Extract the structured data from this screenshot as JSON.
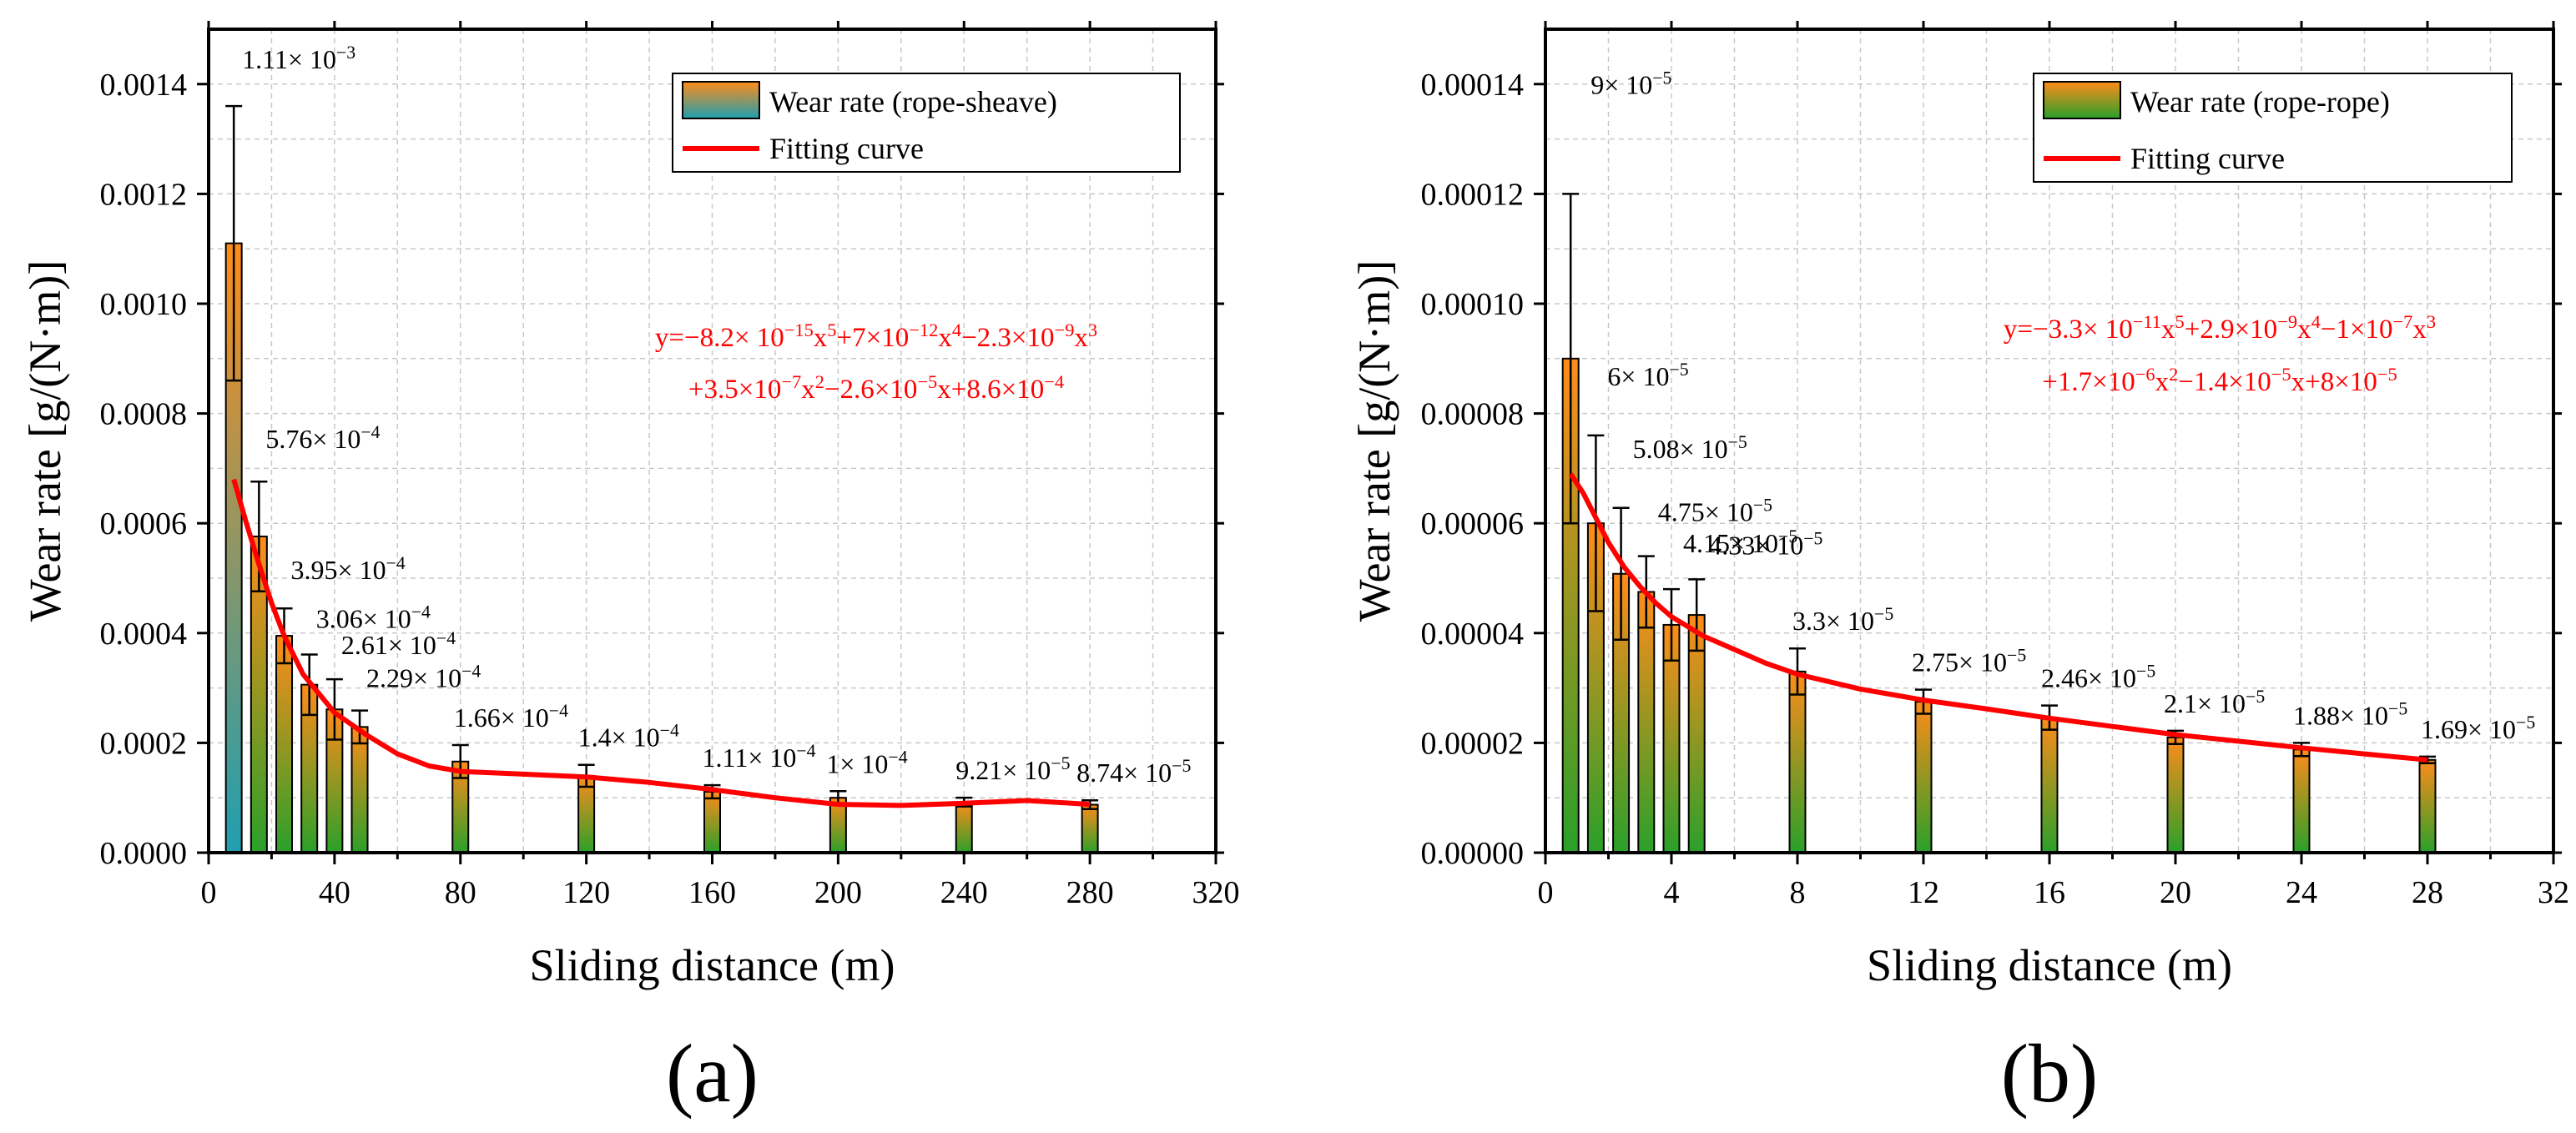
{
  "chart_data": [
    {
      "type": "bar",
      "panel_label": "(a)",
      "xlabel": "Sliding distance (m)",
      "ylabel": "Wear rate [g/(N·m)]",
      "xlim": [
        0,
        320
      ],
      "ylim": [
        0,
        0.0015
      ],
      "xticks": [
        0,
        40,
        80,
        120,
        160,
        200,
        240,
        280,
        320
      ],
      "xtick_labels": [
        "0",
        "40",
        "80",
        "120",
        "160",
        "200",
        "240",
        "280",
        "320"
      ],
      "yticks": [
        0,
        0.0002,
        0.0004,
        0.0006,
        0.0008,
        0.001,
        0.0012,
        0.0014
      ],
      "ytick_labels": [
        "0.0000",
        "0.0002",
        "0.0004",
        "0.0006",
        "0.0008",
        "0.0010",
        "0.0012",
        "0.0014"
      ],
      "grid": true,
      "legend_position": "top-right",
      "legend": {
        "bar": "Wear rate (rope-sheave)",
        "line": "Fitting curve"
      },
      "bar_colors": {
        "top": "#ff8c1a",
        "bottom_first": "#1f9fb0",
        "bottom_rest": "#2aa02a"
      },
      "fit_color": "#ff0000",
      "x": [
        8,
        16,
        24,
        32,
        40,
        48,
        80,
        120,
        160,
        200,
        240,
        280
      ],
      "values": [
        0.00111,
        0.000576,
        0.000395,
        0.000306,
        0.000261,
        0.000229,
        0.000166,
        0.00014,
        0.000111,
        0.0001,
        9.21e-05,
        8.74e-05
      ],
      "errors": [
        0.00025,
        0.0001,
        5e-05,
        5.5e-05,
        5.5e-05,
        3e-05,
        3e-05,
        2e-05,
        1.2e-05,
        1.2e-05,
        8e-06,
        8e-06
      ],
      "value_labels": [
        {
          "mant": "1.11",
          "exp": "−3"
        },
        {
          "mant": "5.76",
          "exp": "−4"
        },
        {
          "mant": "3.95",
          "exp": "−4"
        },
        {
          "mant": "3.06",
          "exp": "−4"
        },
        {
          "mant": "2.61",
          "exp": "−4"
        },
        {
          "mant": "2.29",
          "exp": "−4"
        },
        {
          "mant": "1.66",
          "exp": "−4"
        },
        {
          "mant": "1.4",
          "exp": "−4"
        },
        {
          "mant": "1.11",
          "exp": "−4"
        },
        {
          "mant": "1",
          "exp": "−4"
        },
        {
          "mant": "9.21",
          "exp": "−5"
        },
        {
          "mant": "8.74",
          "exp": "−5"
        }
      ],
      "fit_curve": {
        "x": [
          8,
          12,
          16,
          20,
          24,
          30,
          40,
          50,
          60,
          70,
          80,
          100,
          120,
          140,
          160,
          180,
          200,
          220,
          240,
          260,
          280
        ],
        "y": [
          0.00068,
          0.0006,
          0.000525,
          0.000455,
          0.000395,
          0.000325,
          0.000255,
          0.000215,
          0.00018,
          0.000158,
          0.000148,
          0.000143,
          0.000138,
          0.000128,
          0.000115,
          0.0001,
          8.8e-05,
          8.6e-05,
          9e-05,
          9.5e-05,
          8.8e-05
        ]
      },
      "equation_line1": [
        {
          "t": "y=−8.2× 10"
        },
        {
          "sup": "−15"
        },
        {
          "t": "x"
        },
        {
          "sup": "5"
        },
        {
          "t": "+7×10"
        },
        {
          "sup": "−12"
        },
        {
          "t": "x"
        },
        {
          "sup": "4"
        },
        {
          "t": "−2.3×10"
        },
        {
          "sup": "−9"
        },
        {
          "t": "x"
        },
        {
          "sup": "3"
        }
      ],
      "equation_line2": [
        {
          "t": "+3.5×10"
        },
        {
          "sup": "−7"
        },
        {
          "t": "x"
        },
        {
          "sup": "2"
        },
        {
          "t": "−2.6×10"
        },
        {
          "sup": "−5"
        },
        {
          "t": "x+8.6×10"
        },
        {
          "sup": "−4"
        }
      ]
    },
    {
      "type": "bar",
      "panel_label": "(b)",
      "xlabel": "Sliding distance (m)",
      "ylabel": "Wear rate [g/(N·m)]",
      "xlim": [
        0,
        32
      ],
      "ylim": [
        0,
        0.00015
      ],
      "xticks": [
        0,
        4,
        8,
        12,
        16,
        20,
        24,
        28,
        32
      ],
      "xtick_labels": [
        "0",
        "4",
        "8",
        "12",
        "16",
        "20",
        "24",
        "28",
        "32"
      ],
      "yticks": [
        0,
        2e-05,
        4e-05,
        6e-05,
        8e-05,
        0.0001,
        0.00012,
        0.00014
      ],
      "ytick_labels": [
        "0.00000",
        "0.00002",
        "0.00004",
        "0.00006",
        "0.00008",
        "0.00010",
        "0.00012",
        "0.00014"
      ],
      "grid": true,
      "legend_position": "top-right",
      "legend": {
        "bar": "Wear rate (rope-rope)",
        "line": "Fitting curve"
      },
      "bar_colors": {
        "top": "#ff8c1a",
        "bottom_first": "#2aa02a",
        "bottom_rest": "#2aa02a"
      },
      "fit_color": "#ff0000",
      "x": [
        0.8,
        1.6,
        2.4,
        3.2,
        4.0,
        4.8,
        8,
        12,
        16,
        20,
        24,
        28
      ],
      "values": [
        9e-05,
        6e-05,
        5.08e-05,
        4.75e-05,
        4.15e-05,
        4.33e-05,
        3.3e-05,
        2.75e-05,
        2.46e-05,
        2.1e-05,
        1.88e-05,
        1.69e-05
      ],
      "errors": [
        3e-05,
        1.6e-05,
        1.2e-05,
        6.5e-06,
        6.5e-06,
        6.5e-06,
        4.2e-06,
        2.2e-06,
        2.2e-06,
        1.2e-06,
        1.2e-06,
        6e-07
      ],
      "value_labels": [
        {
          "mant": "9",
          "exp": "−5"
        },
        {
          "mant": "6",
          "exp": "−5"
        },
        {
          "mant": "5.08",
          "exp": "−5"
        },
        {
          "mant": "4.75",
          "exp": "−5"
        },
        {
          "mant": "4.15",
          "exp": "−5"
        },
        {
          "mant": "4.33",
          "exp": "−5"
        },
        {
          "mant": "3.3",
          "exp": "−5"
        },
        {
          "mant": "2.75",
          "exp": "−5"
        },
        {
          "mant": "2.46",
          "exp": "−5"
        },
        {
          "mant": "2.1",
          "exp": "−5"
        },
        {
          "mant": "1.88",
          "exp": "−5"
        },
        {
          "mant": "1.69",
          "exp": "−5"
        }
      ],
      "fit_curve": {
        "x": [
          0.8,
          1.2,
          1.6,
          2.0,
          2.5,
          3.0,
          3.5,
          4.0,
          5.0,
          6.0,
          7.0,
          8.0,
          10,
          12,
          14,
          16,
          18,
          20,
          22,
          24,
          26,
          28
        ],
        "y": [
          6.9e-05,
          6.55e-05,
          6.1e-05,
          5.65e-05,
          5.2e-05,
          4.85e-05,
          4.55e-05,
          4.3e-05,
          3.95e-05,
          3.7e-05,
          3.45e-05,
          3.25e-05,
          2.98e-05,
          2.78e-05,
          2.62e-05,
          2.45e-05,
          2.3e-05,
          2.15e-05,
          2.03e-05,
          1.91e-05,
          1.8e-05,
          1.69e-05
        ]
      },
      "equation_line1": [
        {
          "t": "y=−3.3× 10"
        },
        {
          "sup": "−11"
        },
        {
          "t": "x"
        },
        {
          "sup": "5"
        },
        {
          "t": "+2.9×10"
        },
        {
          "sup": "−9"
        },
        {
          "t": "x"
        },
        {
          "sup": "4"
        },
        {
          "t": "−1×10"
        },
        {
          "sup": "−7"
        },
        {
          "t": "x"
        },
        {
          "sup": "3"
        }
      ],
      "equation_line2": [
        {
          "t": "+1.7×10"
        },
        {
          "sup": "−6"
        },
        {
          "t": "x"
        },
        {
          "sup": "2"
        },
        {
          "t": "−1.4×10"
        },
        {
          "sup": "−5"
        },
        {
          "t": "x+8×10"
        },
        {
          "sup": "−5"
        }
      ]
    }
  ]
}
